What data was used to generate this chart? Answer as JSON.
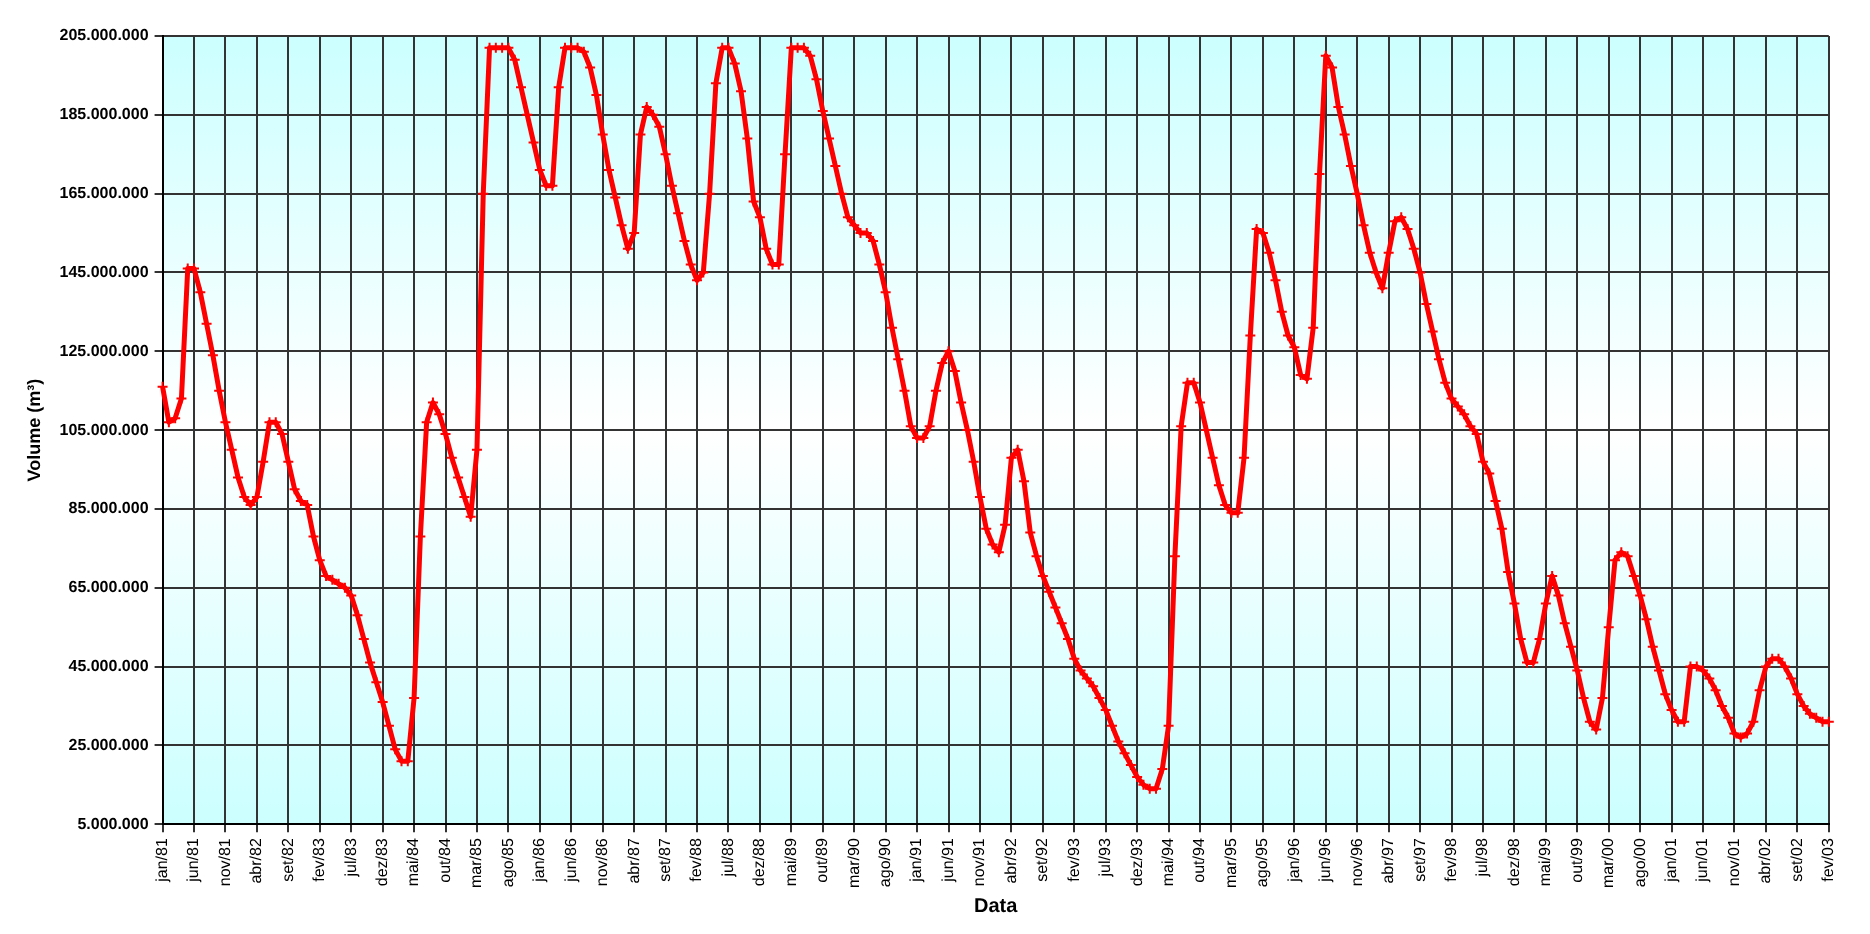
{
  "chart_data": {
    "type": "line",
    "xlabel": "Data",
    "ylabel": "Volume (m³)",
    "categories": [
      "jan/81",
      null,
      null,
      null,
      null,
      "jun/81",
      null,
      null,
      null,
      null,
      "nov/81",
      null,
      null,
      null,
      null,
      "abr/82",
      null,
      null,
      null,
      null,
      "set/82",
      null,
      null,
      null,
      null,
      "fev/83",
      null,
      null,
      null,
      null,
      "jul/83",
      null,
      null,
      null,
      null,
      "dez/83",
      null,
      null,
      null,
      null,
      "mai/84",
      null,
      null,
      null,
      null,
      "out/84",
      null,
      null,
      null,
      null,
      "mar/85",
      null,
      null,
      null,
      null,
      "ago/85",
      null,
      null,
      null,
      null,
      "jan/86",
      null,
      null,
      null,
      null,
      "jun/86",
      null,
      null,
      null,
      null,
      "nov/86",
      null,
      null,
      null,
      null,
      "abr/87",
      null,
      null,
      null,
      null,
      "set/87",
      null,
      null,
      null,
      null,
      "fev/88",
      null,
      null,
      null,
      null,
      "jul/88",
      null,
      null,
      null,
      null,
      "dez/88",
      null,
      null,
      null,
      null,
      "mai/89",
      null,
      null,
      null,
      null,
      "out/89",
      null,
      null,
      null,
      null,
      "mar/90",
      null,
      null,
      null,
      null,
      "ago/90",
      null,
      null,
      null,
      null,
      "jan/91",
      null,
      null,
      null,
      null,
      "jun/91",
      null,
      null,
      null,
      null,
      "nov/91",
      null,
      null,
      null,
      null,
      "abr/92",
      null,
      null,
      null,
      null,
      "set/92",
      null,
      null,
      null,
      null,
      "fev/93",
      null,
      null,
      null,
      null,
      "jul/93",
      null,
      null,
      null,
      null,
      "dez/93",
      null,
      null,
      null,
      null,
      "mai/94",
      null,
      null,
      null,
      null,
      "out/94",
      null,
      null,
      null,
      null,
      "mar/95",
      null,
      null,
      null,
      null,
      "ago/95",
      null,
      null,
      null,
      null,
      "jan/96",
      null,
      null,
      null,
      null,
      "jun/96",
      null,
      null,
      null,
      null,
      "nov/96",
      null,
      null,
      null,
      null,
      "abr/97",
      null,
      null,
      null,
      null,
      "set/97",
      null,
      null,
      null,
      null,
      "fev/98",
      null,
      null,
      null,
      null,
      "jul/98",
      null,
      null,
      null,
      null,
      "dez/98",
      null,
      null,
      null,
      null,
      "mai/99",
      null,
      null,
      null,
      null,
      "out/99",
      null,
      null,
      null,
      null,
      "mar/00",
      null,
      null,
      null,
      null,
      "ago/00",
      null,
      null,
      null,
      null,
      "jan/01",
      null,
      null,
      null,
      null,
      "jun/01",
      null,
      null,
      null,
      null,
      "nov/01",
      null,
      null,
      null,
      null,
      "abr/02",
      null,
      null,
      null,
      null,
      "set/02",
      null,
      null,
      null,
      null,
      "fev/03"
    ],
    "series": [
      {
        "color": "#ff0000",
        "values": [
          116000000,
          107000000,
          108000000,
          113000000,
          146000000,
          146000000,
          140000000,
          132000000,
          124000000,
          115000000,
          107000000,
          100000000,
          93000000,
          88000000,
          86000000,
          88000000,
          97000000,
          107000000,
          107000000,
          104000000,
          97000000,
          90000000,
          87000000,
          86000000,
          78000000,
          72000000,
          68000000,
          67000000,
          66000000,
          65000000,
          63000000,
          58000000,
          52000000,
          46000000,
          41000000,
          36000000,
          30000000,
          24000000,
          21000000,
          21000000,
          37000000,
          78000000,
          107000000,
          112000000,
          109000000,
          104000000,
          98000000,
          93000000,
          88000000,
          83000000,
          100000000,
          165000000,
          202000000,
          202000000,
          202000000,
          202000000,
          199000000,
          192000000,
          185000000,
          178000000,
          171000000,
          167000000,
          167000000,
          192000000,
          202000000,
          202000000,
          202000000,
          201000000,
          197000000,
          190000000,
          180000000,
          171000000,
          164000000,
          157000000,
          151000000,
          155000000,
          180000000,
          187000000,
          185000000,
          182000000,
          175000000,
          167000000,
          160000000,
          153000000,
          147000000,
          143000000,
          145000000,
          165000000,
          193000000,
          202000000,
          202000000,
          198000000,
          191000000,
          179000000,
          163000000,
          159000000,
          151000000,
          147000000,
          147000000,
          175000000,
          202000000,
          202000000,
          202000000,
          200000000,
          194000000,
          186000000,
          179000000,
          172000000,
          165000000,
          159000000,
          157000000,
          155000000,
          155000000,
          153000000,
          147000000,
          140000000,
          131000000,
          123000000,
          115000000,
          106000000,
          103000000,
          103000000,
          106000000,
          115000000,
          122000000,
          125000000,
          120000000,
          112000000,
          105000000,
          97000000,
          88000000,
          80000000,
          76000000,
          74000000,
          81000000,
          98000000,
          100000000,
          92000000,
          79000000,
          73000000,
          68000000,
          64000000,
          60000000,
          56000000,
          52000000,
          47000000,
          44000000,
          42000000,
          40000000,
          37000000,
          34000000,
          30000000,
          26000000,
          23000000,
          20000000,
          17000000,
          15000000,
          14000000,
          14000000,
          19000000,
          30000000,
          73000000,
          106000000,
          117000000,
          117000000,
          112000000,
          105000000,
          98000000,
          91000000,
          86000000,
          84000000,
          84000000,
          98000000,
          129000000,
          156000000,
          155000000,
          150000000,
          143000000,
          135000000,
          129000000,
          126000000,
          119000000,
          118000000,
          131000000,
          170000000,
          200000000,
          197000000,
          187000000,
          180000000,
          172000000,
          165000000,
          157000000,
          150000000,
          145000000,
          141000000,
          150000000,
          158000000,
          159000000,
          156000000,
          151000000,
          145000000,
          137000000,
          130000000,
          123000000,
          117000000,
          113000000,
          111000000,
          109000000,
          106000000,
          104000000,
          97000000,
          94000000,
          87000000,
          80000000,
          69000000,
          61000000,
          52000000,
          46000000,
          46000000,
          52000000,
          61000000,
          68000000,
          63000000,
          56000000,
          50000000,
          44000000,
          37000000,
          31000000,
          29000000,
          37000000,
          55000000,
          72000000,
          74000000,
          73000000,
          68000000,
          63000000,
          57000000,
          50000000,
          44000000,
          38000000,
          34000000,
          31000000,
          31000000,
          45000000,
          45000000,
          44000000,
          42000000,
          39000000,
          35000000,
          32000000,
          28000000,
          27000000,
          28000000,
          31000000,
          39000000,
          45000000,
          47000000,
          47000000,
          45000000,
          42000000,
          38000000,
          35000000,
          33000000,
          32000000,
          31000000,
          31000000
        ]
      }
    ],
    "ylim": [
      5000000,
      205000000
    ],
    "yticks": [
      {
        "value": 5000000,
        "label": "5.000.000"
      },
      {
        "value": 25000000,
        "label": "25.000.000"
      },
      {
        "value": 45000000,
        "label": "45.000.000"
      },
      {
        "value": 65000000,
        "label": "65.000.000"
      },
      {
        "value": 85000000,
        "label": "85.000.000"
      },
      {
        "value": 105000000,
        "label": "105.000.000"
      },
      {
        "value": 125000000,
        "label": "125.000.000"
      },
      {
        "value": 145000000,
        "label": "145.000.000"
      },
      {
        "value": 165000000,
        "label": "165.000.000"
      },
      {
        "value": 185000000,
        "label": "185.000.000"
      },
      {
        "value": 205000000,
        "label": "205.000.000"
      }
    ],
    "grid": true,
    "legend": false,
    "marker": "cross",
    "line_style": "solid"
  }
}
